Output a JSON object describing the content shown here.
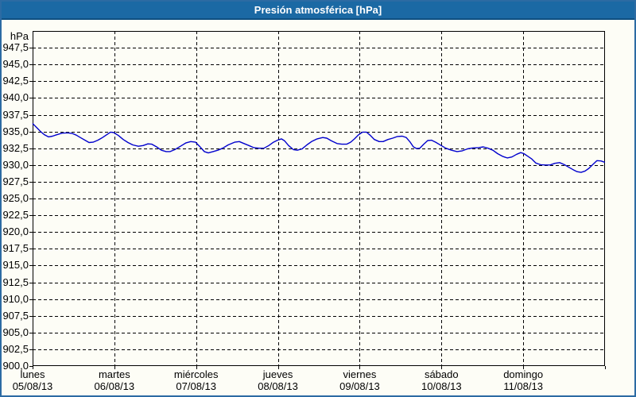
{
  "header": {
    "title": "Presión atmosférica [hPa]"
  },
  "colors": {
    "title_bar": "#1b69a4",
    "title_text": "#ffffff",
    "window_border": "#2c6ba3",
    "background": "#fdfdf6",
    "plot_border": "#000000",
    "grid": "#000000",
    "curve": "#0000cd",
    "label_text": "#000000"
  },
  "chart": {
    "unit": "hPa"
  },
  "chart_data": {
    "type": "line",
    "title": "Presión atmosférica [hPa]",
    "ylabel": "hPa",
    "xlabel": "",
    "ylim": [
      900,
      950
    ],
    "ytick_step": 2.5,
    "grid": "dashed",
    "legend_position": "none",
    "ytick_labels": [
      {
        "value": 947.5,
        "label": "947,5"
      },
      {
        "value": 945.0,
        "label": "945,0"
      },
      {
        "value": 942.5,
        "label": "942,5"
      },
      {
        "value": 940.0,
        "label": "940,0"
      },
      {
        "value": 937.5,
        "label": "937,5"
      },
      {
        "value": 935.0,
        "label": "935,0"
      },
      {
        "value": 932.5,
        "label": "932,5"
      },
      {
        "value": 930.0,
        "label": "930,0"
      },
      {
        "value": 927.5,
        "label": "927,5"
      },
      {
        "value": 925.0,
        "label": "925,0"
      },
      {
        "value": 922.5,
        "label": "922,5"
      },
      {
        "value": 920.0,
        "label": "920,0"
      },
      {
        "value": 917.5,
        "label": "917,5"
      },
      {
        "value": 915.0,
        "label": "915,0"
      },
      {
        "value": 912.5,
        "label": "912,5"
      },
      {
        "value": 910.0,
        "label": "910,0"
      },
      {
        "value": 907.5,
        "label": "907,5"
      },
      {
        "value": 905.0,
        "label": "905,0"
      },
      {
        "value": 902.5,
        "label": "902,5"
      },
      {
        "value": 900.0,
        "label": "900,0"
      }
    ],
    "xlim_days": [
      0,
      7
    ],
    "x_categories": [
      {
        "day": "lunes",
        "date": "05/08/13"
      },
      {
        "day": "martes",
        "date": "06/08/13"
      },
      {
        "day": "miércoles",
        "date": "07/08/13"
      },
      {
        "day": "jueves",
        "date": "08/08/13"
      },
      {
        "day": "viernes",
        "date": "09/08/13"
      },
      {
        "day": "sábado",
        "date": "10/08/13"
      },
      {
        "day": "domingo",
        "date": "11/08/13"
      }
    ],
    "series": [
      {
        "name": "Presión atmosférica (hPa)",
        "color": "#0000cd",
        "points": [
          [
            0.0,
            936.2
          ],
          [
            0.049,
            935.6
          ],
          [
            0.097,
            935.0
          ],
          [
            0.146,
            934.5
          ],
          [
            0.194,
            934.2
          ],
          [
            0.243,
            934.3
          ],
          [
            0.292,
            934.5
          ],
          [
            0.36,
            934.75
          ],
          [
            0.428,
            934.8
          ],
          [
            0.486,
            934.7
          ],
          [
            0.535,
            934.45
          ],
          [
            0.583,
            934.1
          ],
          [
            0.642,
            933.7
          ],
          [
            0.69,
            933.35
          ],
          [
            0.739,
            933.4
          ],
          [
            0.797,
            933.7
          ],
          [
            0.856,
            934.1
          ],
          [
            0.904,
            934.5
          ],
          [
            0.953,
            934.9
          ],
          [
            0.992,
            934.85
          ],
          [
            1.05,
            934.4
          ],
          [
            1.108,
            933.8
          ],
          [
            1.167,
            933.35
          ],
          [
            1.225,
            933.0
          ],
          [
            1.293,
            932.8
          ],
          [
            1.351,
            932.9
          ],
          [
            1.41,
            933.15
          ],
          [
            1.458,
            933.1
          ],
          [
            1.517,
            932.7
          ],
          [
            1.575,
            932.2
          ],
          [
            1.633,
            932.0
          ],
          [
            1.682,
            932.0
          ],
          [
            1.74,
            932.3
          ],
          [
            1.808,
            932.8
          ],
          [
            1.876,
            933.3
          ],
          [
            1.935,
            933.5
          ],
          [
            1.993,
            933.4
          ],
          [
            2.042,
            932.8
          ],
          [
            2.1,
            932.0
          ],
          [
            2.149,
            931.8
          ],
          [
            2.207,
            932.0
          ],
          [
            2.265,
            932.2
          ],
          [
            2.324,
            932.5
          ],
          [
            2.392,
            933.0
          ],
          [
            2.47,
            933.4
          ],
          [
            2.528,
            933.5
          ],
          [
            2.586,
            933.2
          ],
          [
            2.645,
            932.9
          ],
          [
            2.703,
            932.6
          ],
          [
            2.771,
            932.5
          ],
          [
            2.829,
            932.5
          ],
          [
            2.888,
            932.9
          ],
          [
            2.946,
            933.4
          ],
          [
            2.994,
            933.7
          ],
          [
            3.043,
            933.9
          ],
          [
            3.082,
            933.6
          ],
          [
            3.131,
            932.9
          ],
          [
            3.189,
            932.3
          ],
          [
            3.237,
            932.2
          ],
          [
            3.296,
            932.4
          ],
          [
            3.354,
            933.0
          ],
          [
            3.412,
            933.5
          ],
          [
            3.48,
            933.9
          ],
          [
            3.549,
            934.1
          ],
          [
            3.597,
            934.0
          ],
          [
            3.655,
            933.6
          ],
          [
            3.724,
            933.2
          ],
          [
            3.782,
            933.1
          ],
          [
            3.84,
            933.1
          ],
          [
            3.889,
            933.4
          ],
          [
            3.937,
            933.9
          ],
          [
            3.986,
            934.5
          ],
          [
            4.035,
            934.9
          ],
          [
            4.083,
            934.9
          ],
          [
            4.132,
            934.4
          ],
          [
            4.18,
            933.8
          ],
          [
            4.239,
            933.5
          ],
          [
            4.287,
            933.5
          ],
          [
            4.346,
            933.8
          ],
          [
            4.404,
            934.0
          ],
          [
            4.462,
            934.25
          ],
          [
            4.521,
            934.3
          ],
          [
            4.569,
            934.1
          ],
          [
            4.618,
            933.4
          ],
          [
            4.657,
            932.7
          ],
          [
            4.696,
            932.45
          ],
          [
            4.735,
            932.5
          ],
          [
            4.783,
            933.1
          ],
          [
            4.832,
            933.65
          ],
          [
            4.88,
            933.7
          ],
          [
            4.929,
            933.4
          ],
          [
            4.997,
            932.9
          ],
          [
            5.055,
            932.5
          ],
          [
            5.123,
            932.2
          ],
          [
            5.191,
            932.0
          ],
          [
            5.25,
            932.1
          ],
          [
            5.318,
            932.4
          ],
          [
            5.386,
            932.55
          ],
          [
            5.454,
            932.6
          ],
          [
            5.512,
            932.7
          ],
          [
            5.57,
            932.5
          ],
          [
            5.629,
            932.2
          ],
          [
            5.687,
            931.7
          ],
          [
            5.745,
            931.3
          ],
          [
            5.804,
            931.05
          ],
          [
            5.862,
            931.2
          ],
          [
            5.92,
            931.6
          ],
          [
            5.969,
            931.85
          ],
          [
            6.008,
            931.7
          ],
          [
            6.056,
            931.3
          ],
          [
            6.105,
            930.9
          ],
          [
            6.153,
            930.3
          ],
          [
            6.212,
            930.05
          ],
          [
            6.27,
            930.0
          ],
          [
            6.328,
            930.0
          ],
          [
            6.387,
            930.25
          ],
          [
            6.445,
            930.35
          ],
          [
            6.503,
            930.05
          ],
          [
            6.552,
            929.7
          ],
          [
            6.61,
            929.3
          ],
          [
            6.659,
            929.0
          ],
          [
            6.707,
            928.9
          ],
          [
            6.756,
            929.1
          ],
          [
            6.804,
            929.5
          ],
          [
            6.853,
            930.1
          ],
          [
            6.902,
            930.65
          ],
          [
            6.95,
            930.6
          ],
          [
            6.999,
            930.4
          ]
        ]
      }
    ]
  }
}
